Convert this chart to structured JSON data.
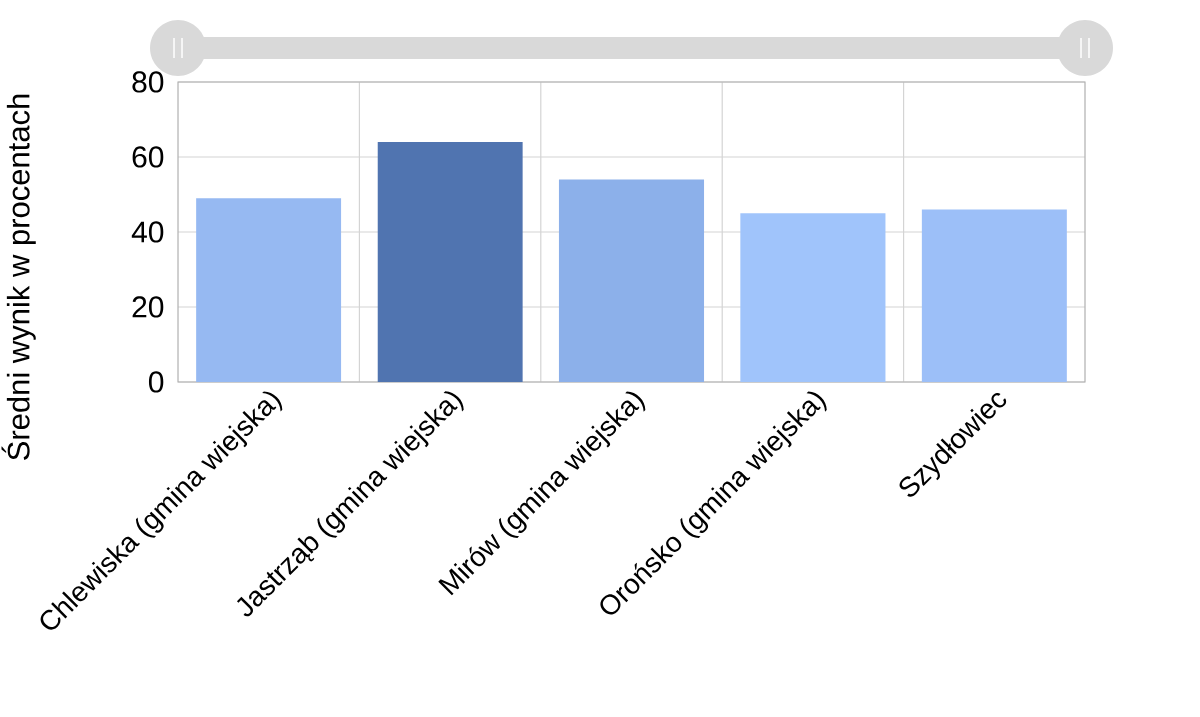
{
  "chart_data": {
    "type": "bar",
    "ylabel": "Średni wynik w procentach",
    "categories": [
      "Chlewiska (gmina wiejska)",
      "Jastrząb (gmina wiejska)",
      "Mirów (gmina wiejska)",
      "Orońsko (gmina wiejska)",
      "Szydłowiec"
    ],
    "values": [
      49,
      64,
      54,
      45,
      46
    ],
    "colors": [
      "#96b9f2",
      "#5074b0",
      "#8cb0ea",
      "#a0c4fb",
      "#9cbff8"
    ],
    "ylim": [
      0,
      80
    ],
    "yticks": [
      0,
      20,
      40,
      60,
      80
    ],
    "grid": true
  }
}
